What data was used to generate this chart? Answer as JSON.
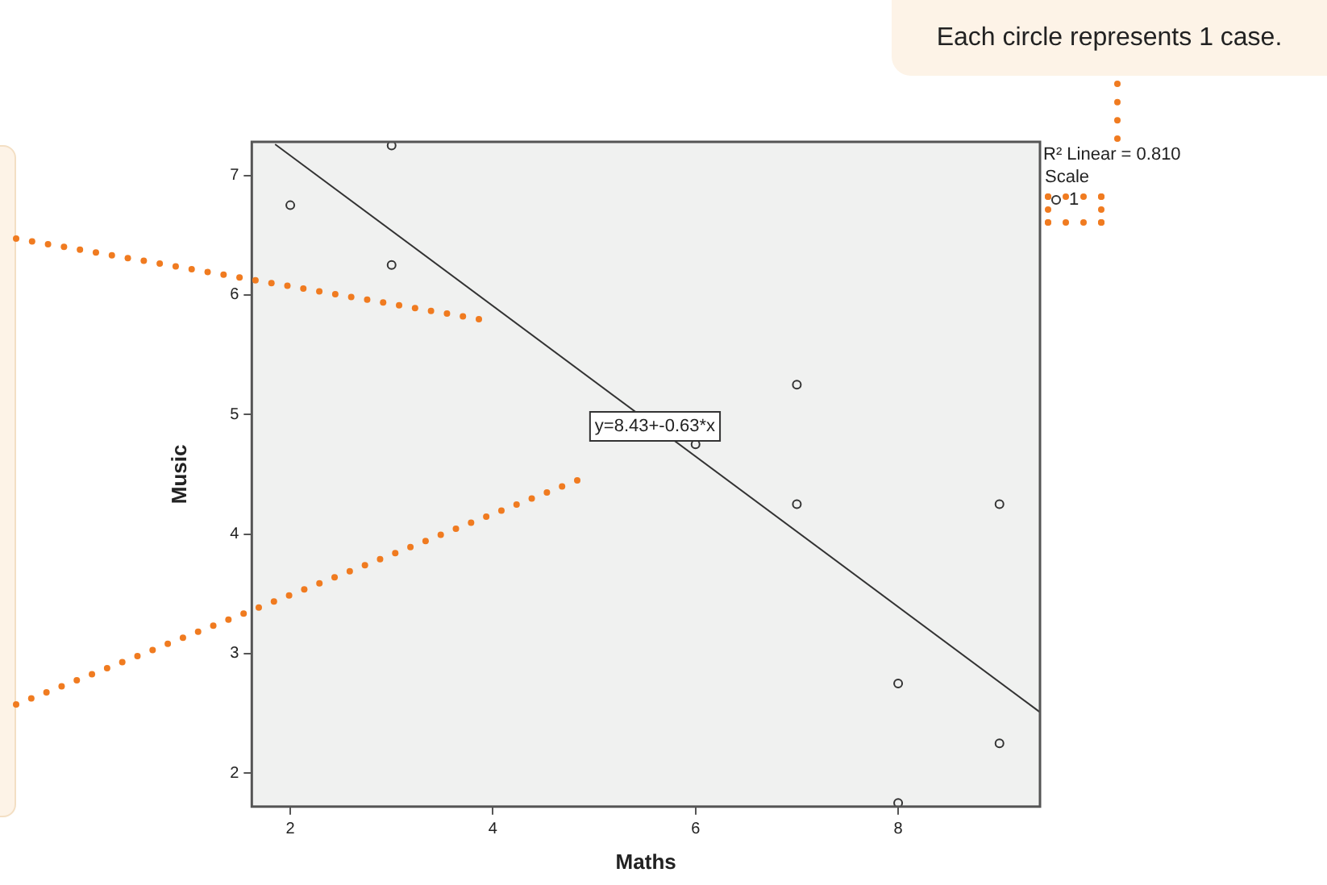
{
  "chart_data": {
    "type": "scatter",
    "xlabel": "Maths",
    "ylabel": "Music",
    "legend_title": "Scale",
    "legend": "top right",
    "grid": false,
    "xlim": [
      1.62,
      9.4
    ],
    "ylim": [
      1.72,
      7.28
    ],
    "xticks": [
      2,
      4,
      6,
      8
    ],
    "yticks": [
      2,
      3,
      4,
      5,
      6,
      7
    ],
    "series": [
      {
        "name": "1",
        "color": "#333333",
        "marker": "circle",
        "x": [
          2,
          3,
          3,
          6,
          7,
          7,
          8,
          8,
          9,
          9
        ],
        "values": [
          6.75,
          7.25,
          6.25,
          4.75,
          5.25,
          4.25,
          2.75,
          1.75,
          2.25,
          4.25
        ]
      },
      {
        "type": "line",
        "color": "#333333",
        "marker": "none",
        "x": [
          1.85,
          9.4
        ],
        "values": [
          7.26,
          2.51
        ]
      }
    ],
    "annotations": [
      "Each circle represents 1 case.",
      "R² Linear = 0.810",
      {
        "text": "y=8.43+-0.63*x",
        "x": 5.6,
        "y": 4.9
      }
    ]
  }
}
